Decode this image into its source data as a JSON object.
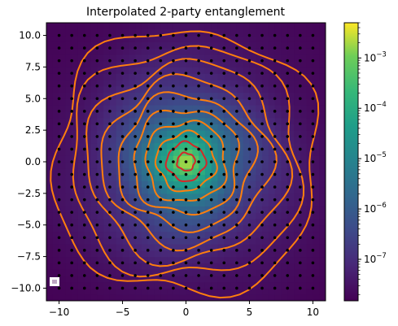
{
  "chart_data": {
    "type": "heatmap",
    "title": "Interpolated 2-party entanglement",
    "xlabel": "",
    "ylabel": "",
    "xlim": [
      -11,
      11
    ],
    "ylim": [
      -11,
      11
    ],
    "x_ticks": [
      -10,
      -5,
      0,
      5,
      10
    ],
    "x_tick_labels": [
      "−10",
      "−5",
      "0",
      "5",
      "10"
    ],
    "y_ticks": [
      10.0,
      7.5,
      5.0,
      2.5,
      0.0,
      -2.5,
      -5.0,
      -7.5,
      -10.0
    ],
    "y_tick_labels": [
      "10.0",
      "7.5",
      "5.0",
      "2.5",
      "0.0",
      "−2.5",
      "−5.0",
      "−7.5",
      "−10.0"
    ],
    "colormap": "viridis",
    "color_scale": "log",
    "colorbar": {
      "range": [
        1.5e-08,
        0.005
      ],
      "ticks": [
        0.001,
        0.0001,
        1e-05,
        1e-06,
        1e-07
      ],
      "tick_bases": [
        "10",
        "10",
        "10",
        "10",
        "10"
      ],
      "tick_exponents": [
        "−3",
        "−4",
        "−5",
        "−6",
        "−7"
      ]
    },
    "field": {
      "description_of_shape": "radially symmetric peak at origin",
      "peak_value": 0.004,
      "decay_scale": 3.2,
      "floor_value": 1.5e-08
    },
    "sample_points": {
      "x_start": -10,
      "x_end": 10,
      "y_start": -10,
      "y_end": 10,
      "step": 1
    },
    "contour_levels_radius": [
      0.7,
      1.5,
      2.3,
      3.2,
      4.2,
      5.3,
      6.5,
      7.8,
      9.2,
      10.6
    ],
    "contour_color": "#ff7f0e",
    "inner_contour_color": "#d62728",
    "grid": false
  }
}
